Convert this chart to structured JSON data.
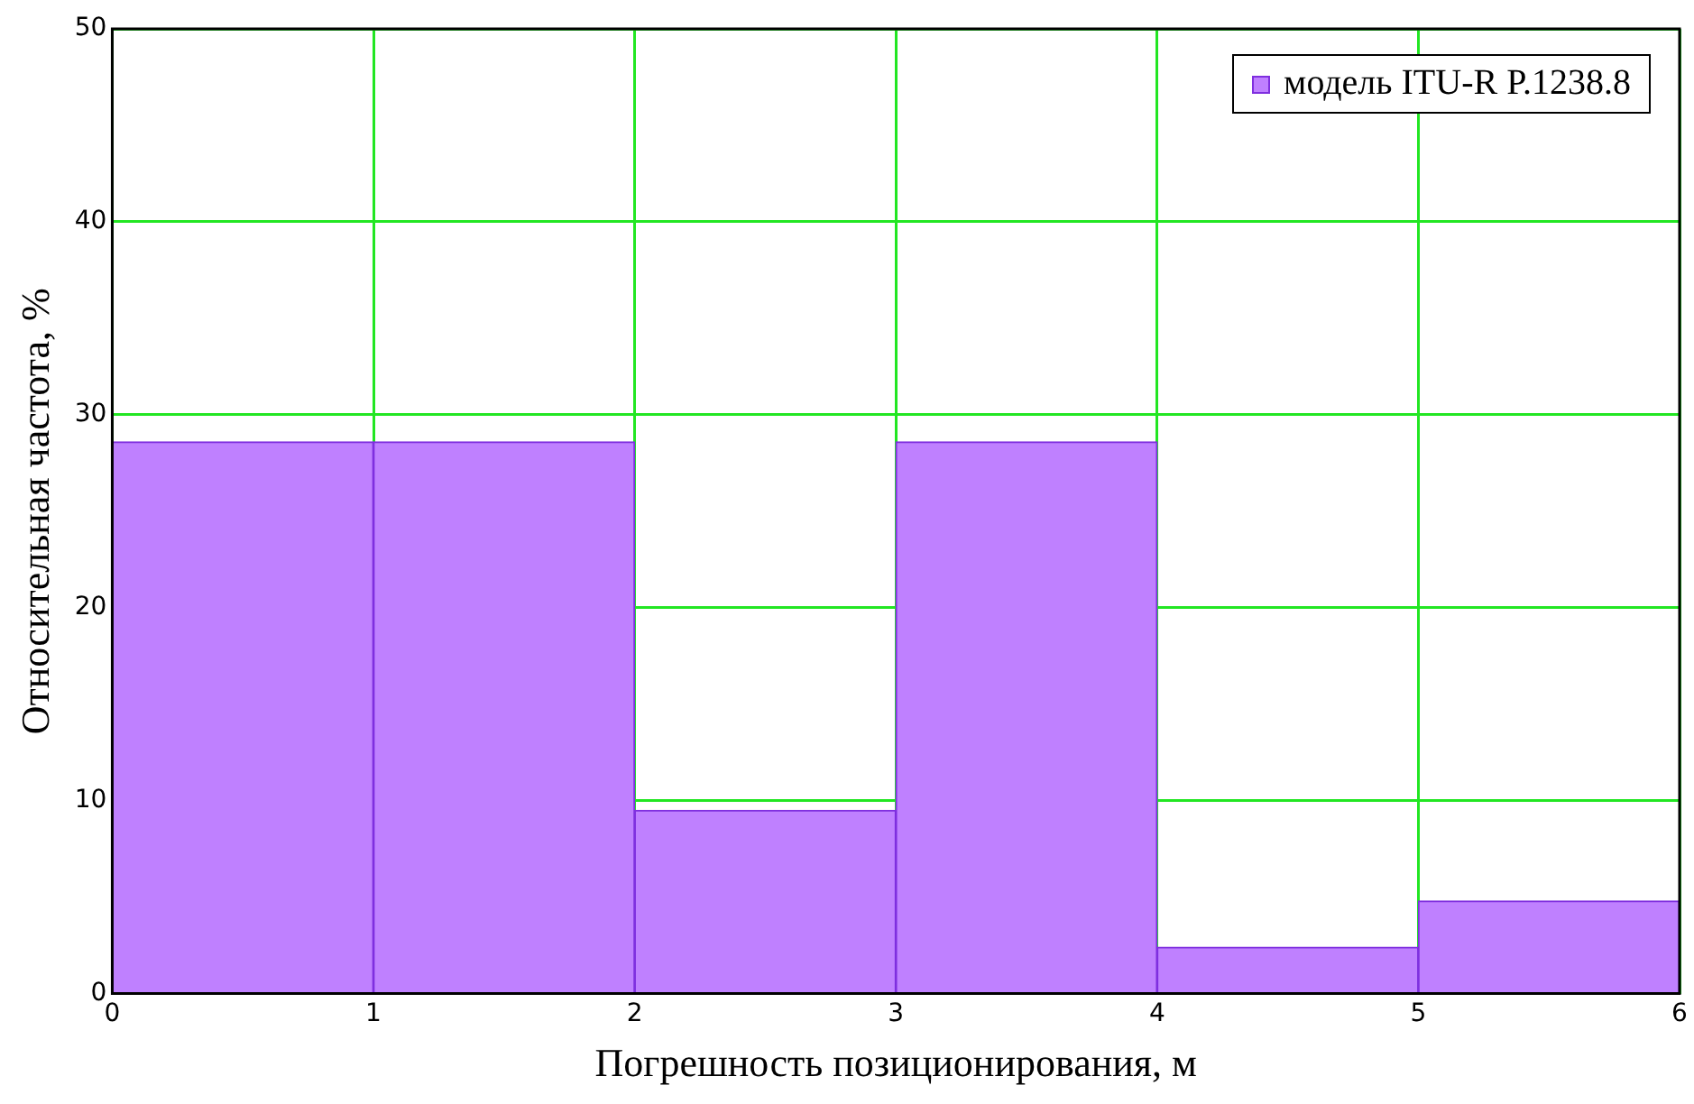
{
  "chart_data": {
    "type": "histogram",
    "xlabel": "Погрешность позиционирования, м",
    "ylabel": "Относительная частота, %",
    "bins": [
      0,
      1,
      2,
      3,
      4,
      5,
      6
    ],
    "series": [
      {
        "name": "модель ITU-R P.1238.8",
        "color": "#bf80ff",
        "values": [
          28.6,
          28.6,
          9.5,
          28.6,
          2.4,
          4.8
        ]
      }
    ],
    "xlim": [
      0,
      6
    ],
    "xticks": [
      0,
      1,
      2,
      3,
      4,
      5,
      6
    ],
    "ylim": [
      0,
      50
    ],
    "yticks": [
      0,
      10,
      20,
      30,
      40,
      50
    ],
    "grid": true,
    "legend": "top right"
  }
}
